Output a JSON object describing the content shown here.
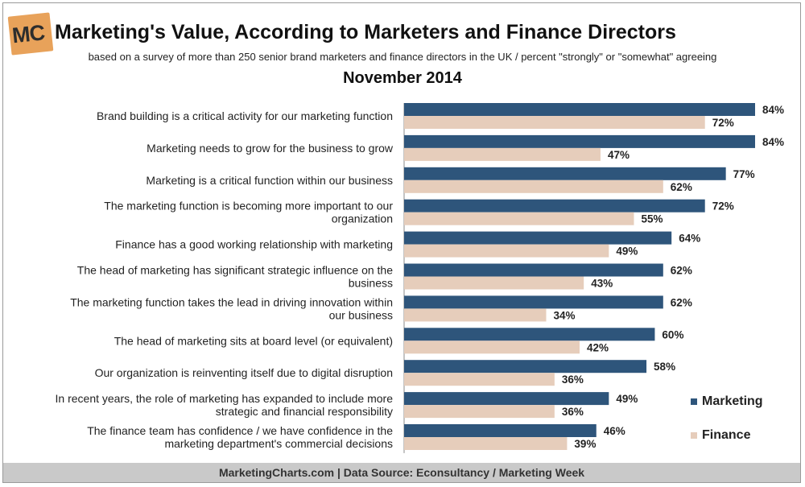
{
  "header": {
    "logo_text": "MC",
    "title": "Marketing's Value, According to Marketers and Finance Directors",
    "subtitle": "based on a survey of more than 250 senior brand marketers and finance directors in the UK / percent \"strongly\" or \"somewhat\" agreeing",
    "period": "November 2014"
  },
  "footer": {
    "text": "MarketingCharts.com | Data Source: Econsultancy / Marketing Week"
  },
  "chart_data": {
    "type": "bar",
    "orientation": "horizontal",
    "title": "Marketing's Value, According to Marketers and Finance Directors",
    "subtitle": "November 2014",
    "xlim": [
      0,
      100
    ],
    "grid": false,
    "legend_position": "right",
    "categories": [
      [
        "Brand building is a critical activity for our marketing function"
      ],
      [
        "Marketing needs to grow for the business to grow"
      ],
      [
        "Marketing is a critical function within our business"
      ],
      [
        "The marketing function is becoming more important to our",
        "organization"
      ],
      [
        "Finance has a good working relationship with marketing"
      ],
      [
        "The head of marketing has significant strategic influence on the",
        "business"
      ],
      [
        "The marketing function takes the lead in driving innovation within",
        "our business"
      ],
      [
        "The head of marketing sits at board level (or equivalent)"
      ],
      [
        "Our organization is reinventing itself due to digital disruption"
      ],
      [
        "In recent years, the role of marketing has expanded to include more",
        "strategic and financial responsibility"
      ],
      [
        "The finance team has confidence / we have confidence in the",
        "marketing department's commercial decisions"
      ]
    ],
    "series": [
      {
        "name": "Marketing",
        "color": "#2e557b",
        "values": [
          84,
          84,
          77,
          72,
          64,
          62,
          62,
          60,
          58,
          49,
          46
        ]
      },
      {
        "name": "Finance",
        "color": "#e6cdbb",
        "values": [
          72,
          47,
          62,
          55,
          49,
          43,
          34,
          42,
          36,
          36,
          39
        ]
      }
    ],
    "value_suffix": "%"
  }
}
